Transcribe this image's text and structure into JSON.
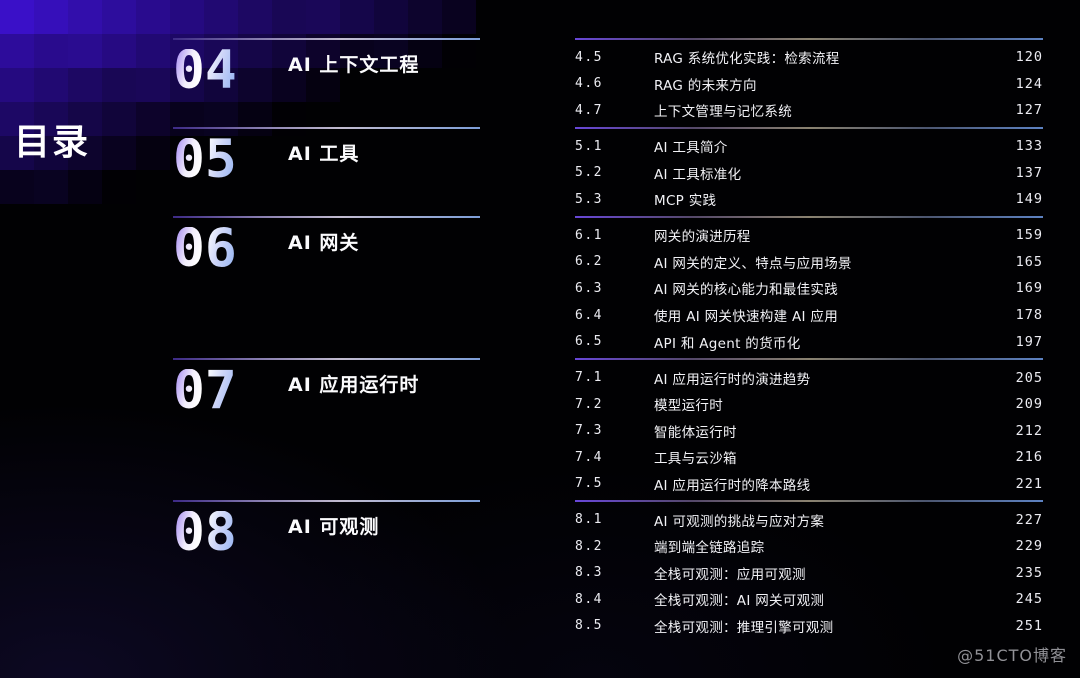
{
  "page_title": "目录",
  "watermark": "@51CTO博客",
  "colors": {
    "rule_purple": "#6847d8",
    "rule_blue": "#5d82c2",
    "number_gradient": [
      "#9a7cf0",
      "#ffffff",
      "#8fb0f2"
    ],
    "checker_base": "#3a10c8",
    "text_primary": "#ffffff",
    "watermark_gray": "#919196"
  },
  "sections": [
    {
      "number": "04",
      "title": "AI 上下文工程",
      "items": [
        {
          "no": "4.5",
          "title": "RAG 系统优化实践：检索流程",
          "page": "120"
        },
        {
          "no": "4.6",
          "title": "RAG 的未来方向",
          "page": "124"
        },
        {
          "no": "4.7",
          "title": "上下文管理与记忆系统",
          "page": "127"
        }
      ]
    },
    {
      "number": "05",
      "title": "AI 工具",
      "items": [
        {
          "no": "5.1",
          "title": "AI 工具简介",
          "page": "133"
        },
        {
          "no": "5.2",
          "title": "AI 工具标准化",
          "page": "137"
        },
        {
          "no": "5.3",
          "title": "MCP 实践",
          "page": "149"
        }
      ]
    },
    {
      "number": "06",
      "title": "AI 网关",
      "items": [
        {
          "no": "6.1",
          "title": "网关的演进历程",
          "page": "159"
        },
        {
          "no": "6.2",
          "title": "AI 网关的定义、特点与应用场景",
          "page": "165"
        },
        {
          "no": "6.3",
          "title": "AI 网关的核心能力和最佳实践",
          "page": "169"
        },
        {
          "no": "6.4",
          "title": "使用 AI 网关快速构建 AI 应用",
          "page": "178"
        },
        {
          "no": "6.5",
          "title": "API 和 Agent 的货币化",
          "page": "197"
        }
      ]
    },
    {
      "number": "07",
      "title": "AI 应用运行时",
      "items": [
        {
          "no": "7.1",
          "title": "AI 应用运行时的演进趋势",
          "page": "205"
        },
        {
          "no": "7.2",
          "title": "模型运行时",
          "page": "209"
        },
        {
          "no": "7.3",
          "title": "智能体运行时",
          "page": "212"
        },
        {
          "no": "7.4",
          "title": "工具与云沙箱",
          "page": "216"
        },
        {
          "no": "7.5",
          "title": "AI 应用运行时的降本路线",
          "page": "221"
        }
      ]
    },
    {
      "number": "08",
      "title": "AI 可观测",
      "items": [
        {
          "no": "8.1",
          "title": "AI 可观测的挑战与应对方案",
          "page": "227"
        },
        {
          "no": "8.2",
          "title": "端到端全链路追踪",
          "page": "229"
        },
        {
          "no": "8.3",
          "title": "全栈可观测：应用可观测",
          "page": "235"
        },
        {
          "no": "8.4",
          "title": "全栈可观测：AI 网关可观测",
          "page": "245"
        },
        {
          "no": "8.5",
          "title": "全栈可观测：推理引擎可观测",
          "page": "251"
        }
      ]
    }
  ]
}
